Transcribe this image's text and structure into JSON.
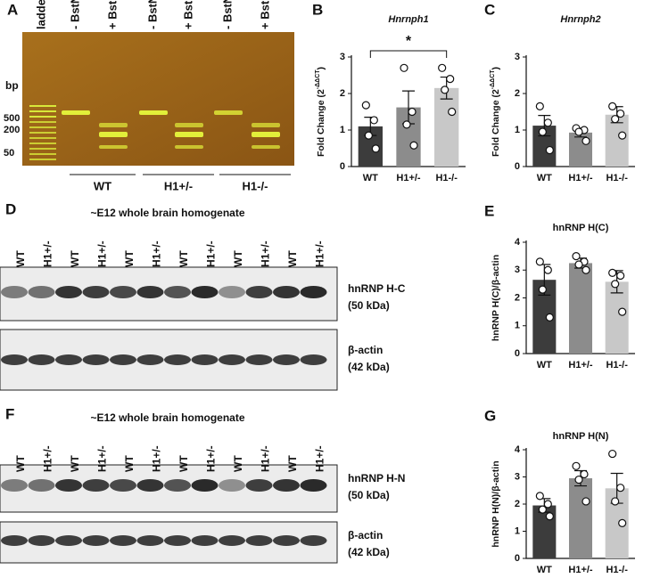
{
  "gel": {
    "panel": "A",
    "lanes": [
      "ladder",
      "- BstNI",
      "+ BstNI",
      "- BstNI",
      "+ BstNI",
      "- BstNI",
      "+ BstNI"
    ],
    "size_unit": "bp",
    "sizes": [
      "500",
      "200",
      "50"
    ],
    "groups": [
      "WT",
      "H1+/-",
      "H1-/-"
    ]
  },
  "blot_c": {
    "panel": "D",
    "title": "~E12 whole brain homogenate",
    "lanes": [
      "WT",
      "H1+/-",
      "WT",
      "H1+/-",
      "WT",
      "H1+/-",
      "WT",
      "H1+/-",
      "WT",
      "H1+/-",
      "WT",
      "H1+/-"
    ],
    "bands": [
      {
        "name": "hnRNP H-C",
        "size": "(50 kDa)"
      },
      {
        "name": "β-actin",
        "size": "(42 kDa)"
      }
    ]
  },
  "blot_n": {
    "panel": "F",
    "title": "~E12 whole brain homogenate",
    "lanes": [
      "WT",
      "H1+/-",
      "WT",
      "H1+/-",
      "WT",
      "H1+/-",
      "WT",
      "H1+/-",
      "WT",
      "H1+/-",
      "WT",
      "H1+/-"
    ],
    "bands": [
      {
        "name": "hnRNP H-N",
        "size": "(50 kDa)"
      },
      {
        "name": "β-actin",
        "size": "(42 kDa)"
      }
    ]
  },
  "chart_data": [
    {
      "panel": "B",
      "type": "bar",
      "title": "Hnrnph1",
      "title_style": "italic",
      "ylabel": {
        "text": "Fold Change (2",
        "superscript": "-ΔΔCT",
        "suffix": ")"
      },
      "categories": [
        "WT",
        "H1+/-",
        "H1-/-"
      ],
      "colors": [
        "#3c3c3c",
        "#8c8c8c",
        "#c8c8c8"
      ],
      "values": [
        1.1,
        1.62,
        2.15
      ],
      "errors": [
        0.25,
        0.45,
        0.3
      ],
      "points": [
        [
          1.68,
          1.27,
          0.85,
          0.49
        ],
        [
          2.7,
          1.5,
          1.15,
          0.58
        ],
        [
          2.7,
          2.4,
          2.1,
          1.5
        ]
      ],
      "ylim": [
        0,
        3
      ],
      "yticks": [
        0,
        1,
        2,
        3
      ],
      "annotations": [
        "*"
      ]
    },
    {
      "panel": "C",
      "type": "bar",
      "title": "Hnrnph2",
      "title_style": "italic",
      "ylabel": {
        "text": "Fold Change (2",
        "superscript": "-ΔΔCT",
        "suffix": ")"
      },
      "categories": [
        "WT",
        "H1+/-",
        "H1-/-"
      ],
      "colors": [
        "#3c3c3c",
        "#8c8c8c",
        "#c8c8c8"
      ],
      "values": [
        1.12,
        0.93,
        1.42
      ],
      "errors": [
        0.28,
        0.12,
        0.22
      ],
      "points": [
        [
          1.65,
          1.2,
          0.95,
          0.45
        ],
        [
          1.05,
          1.0,
          0.95,
          0.7
        ],
        [
          1.65,
          1.45,
          1.3,
          0.85
        ]
      ],
      "ylim": [
        0,
        3
      ],
      "yticks": [
        0,
        1,
        2,
        3
      ]
    },
    {
      "panel": "E",
      "type": "bar",
      "title": "hnRNP H(C)",
      "title_style": "bold",
      "ylabel": {
        "text": "hnRNP H(C)/β-actin"
      },
      "categories": [
        "WT",
        "H1+/-",
        "H1-/-"
      ],
      "colors": [
        "#3c3c3c",
        "#8c8c8c",
        "#c8c8c8"
      ],
      "values": [
        2.65,
        3.25,
        2.58
      ],
      "errors": [
        0.55,
        0.18,
        0.4
      ],
      "points": [
        [
          3.3,
          3.0,
          2.3,
          1.3
        ],
        [
          3.5,
          3.3,
          3.2,
          3.0
        ],
        [
          2.9,
          2.8,
          2.5,
          1.5
        ]
      ],
      "ylim": [
        0,
        4
      ],
      "yticks": [
        0,
        1,
        2,
        3,
        4
      ]
    },
    {
      "panel": "G",
      "type": "bar",
      "title": "hnRNP H(N)",
      "title_style": "bold",
      "ylabel": {
        "text": "hnRNP H(N)/β-actin"
      },
      "categories": [
        "WT",
        "H1+/-",
        "H1-/-"
      ],
      "colors": [
        "#3c3c3c",
        "#8c8c8c",
        "#c8c8c8"
      ],
      "values": [
        1.95,
        2.95,
        2.58
      ],
      "errors": [
        0.25,
        0.28,
        0.55
      ],
      "points": [
        [
          2.3,
          2.0,
          1.8,
          1.55
        ],
        [
          3.4,
          3.1,
          2.9,
          2.1
        ],
        [
          3.85,
          2.6,
          2.1,
          1.3
        ]
      ],
      "ylim": [
        0,
        4
      ],
      "yticks": [
        0,
        1,
        2,
        3,
        4
      ]
    }
  ]
}
